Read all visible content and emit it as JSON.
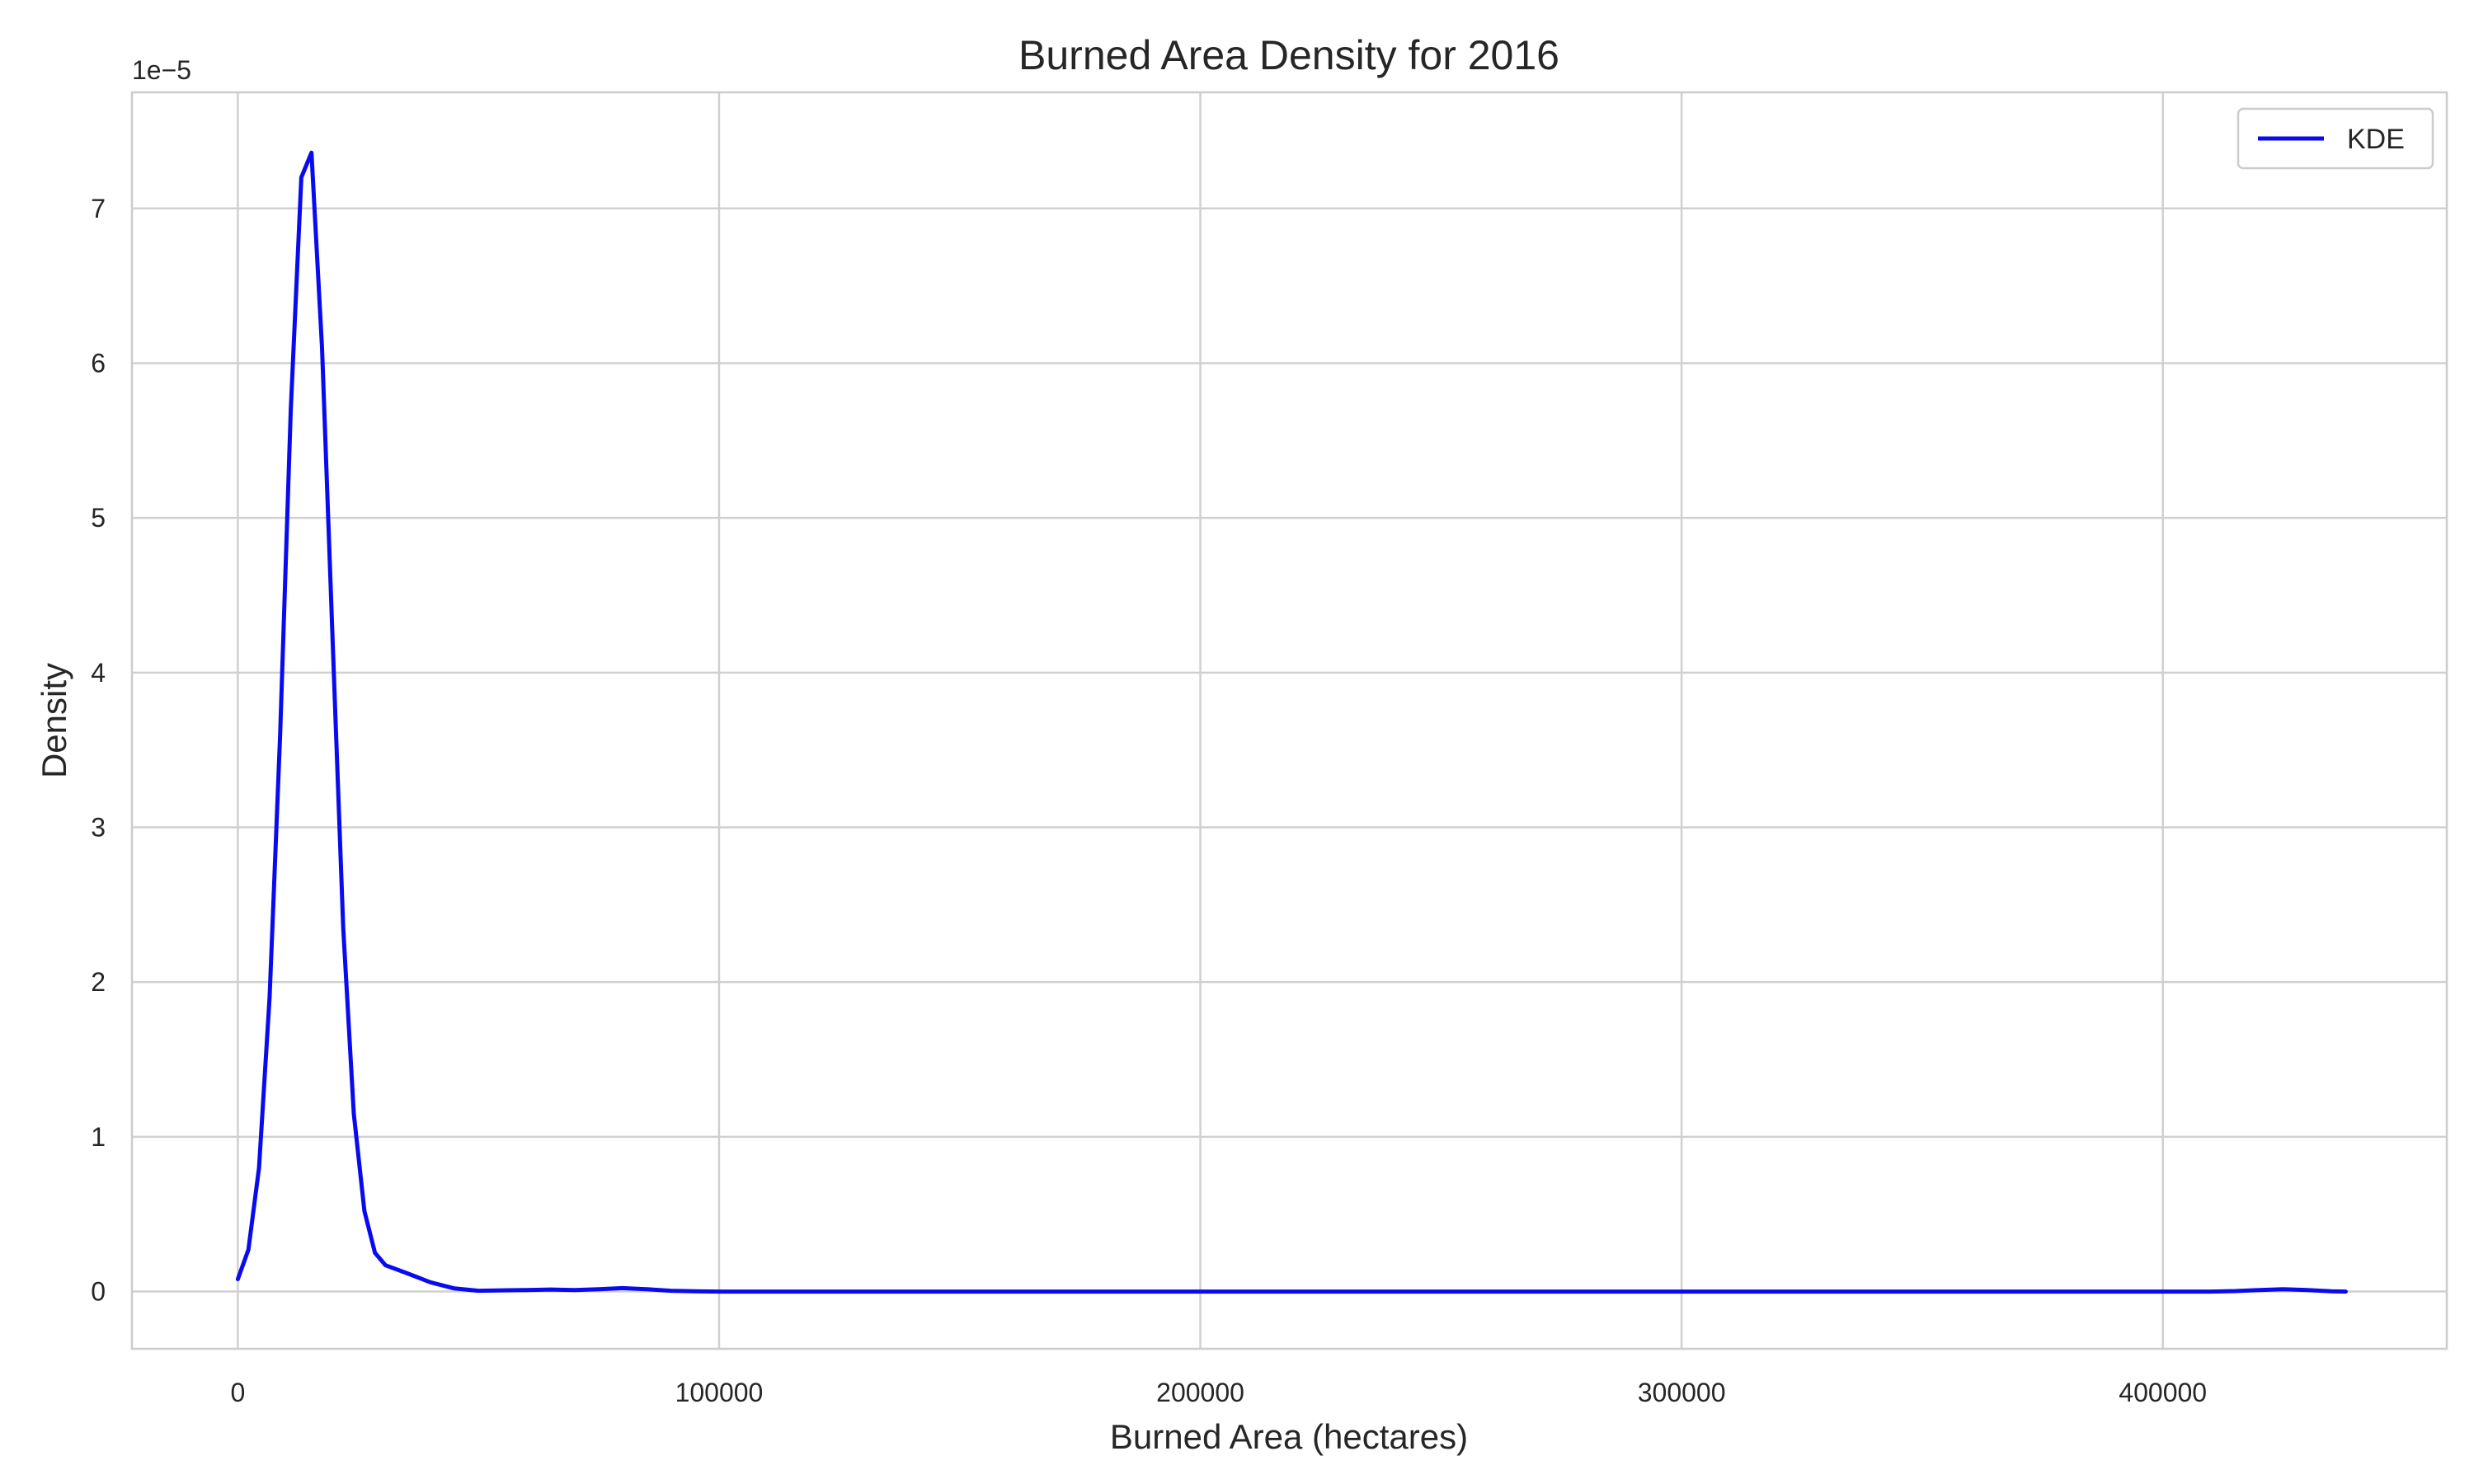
{
  "chart_data": {
    "type": "line",
    "title": "Burned Area Density for 2016",
    "xlabel": "Burned Area (hectares)",
    "ylabel": "Density",
    "y_offset_label": "1e−5",
    "y_multiplier": 1e-05,
    "xlim": [
      -22000,
      459000
    ],
    "ylim": [
      -0.37,
      7.75
    ],
    "x_ticks": [
      0,
      100000,
      200000,
      300000,
      400000
    ],
    "x_tick_labels": [
      "0",
      "100000",
      "200000",
      "300000",
      "400000"
    ],
    "y_ticks": [
      0,
      1,
      2,
      3,
      4,
      5,
      6,
      7
    ],
    "y_tick_labels": [
      "0",
      "1",
      "2",
      "3",
      "4",
      "5",
      "6",
      "7"
    ],
    "grid": true,
    "legend_position": "top-right",
    "colors": {
      "line": "#0a0aef"
    },
    "series": [
      {
        "name": "KDE",
        "x": [
          0,
          2200,
          4400,
          6600,
          8800,
          11000,
          13200,
          15300,
          17500,
          19700,
          21900,
          24100,
          26300,
          28500,
          30700,
          35000,
          40000,
          45000,
          50000,
          55000,
          60000,
          65000,
          70000,
          75000,
          80000,
          85000,
          90000,
          95000,
          100000,
          150000,
          200000,
          250000,
          300000,
          350000,
          400000,
          410000,
          415000,
          420000,
          425000,
          430000,
          435000,
          438000
        ],
        "y": [
          0.08,
          0.27,
          0.8,
          1.9,
          3.6,
          5.7,
          7.2,
          7.36,
          6.1,
          4.2,
          2.35,
          1.15,
          0.52,
          0.25,
          0.17,
          0.12,
          0.06,
          0.02,
          0.005,
          0.008,
          0.01,
          0.013,
          0.01,
          0.015,
          0.022,
          0.015,
          0.005,
          0.002,
          0.0,
          0.0,
          0.0,
          0.0,
          0.0,
          0.0,
          0.0,
          0.0,
          0.003,
          0.01,
          0.015,
          0.01,
          0.002,
          0.0
        ]
      }
    ]
  }
}
